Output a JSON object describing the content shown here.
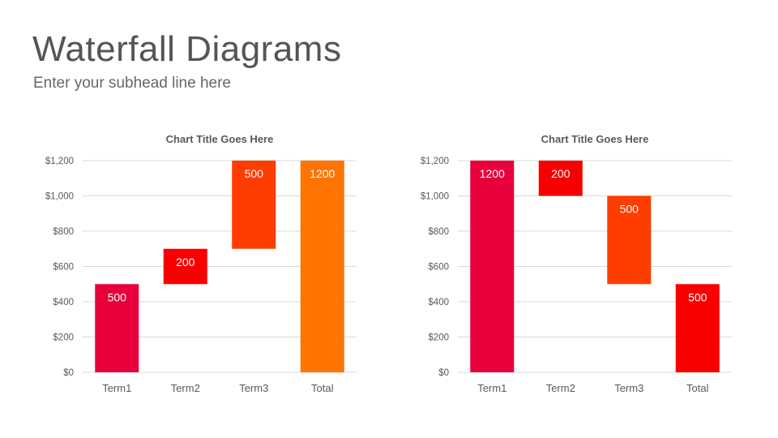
{
  "page": {
    "title": "Waterfall Diagrams",
    "subtitle": "Enter your subhead line here"
  },
  "chart_data": [
    {
      "type": "bar",
      "subtype": "waterfall",
      "title": "Chart Title Goes Here",
      "categories": [
        "Term1",
        "Term2",
        "Term3",
        "Total"
      ],
      "bars": [
        {
          "category": "Term1",
          "start": 0,
          "end": 500,
          "label": "500",
          "color": "#e8003c"
        },
        {
          "category": "Term2",
          "start": 500,
          "end": 700,
          "label": "200",
          "color": "#f80000"
        },
        {
          "category": "Term3",
          "start": 700,
          "end": 1200,
          "label": "500",
          "color": "#ff3d00"
        },
        {
          "category": "Total",
          "start": 0,
          "end": 1200,
          "label": "1200",
          "color": "#ff7300"
        }
      ],
      "ylim": [
        0,
        1200
      ],
      "yticks": [
        "$0",
        "$200",
        "$400",
        "$600",
        "$800",
        "$1,000",
        "$1,200"
      ],
      "grid": true
    },
    {
      "type": "bar",
      "subtype": "waterfall",
      "title": "Chart Title Goes Here",
      "categories": [
        "Term1",
        "Term2",
        "Term3",
        "Total"
      ],
      "bars": [
        {
          "category": "Term1",
          "start": 0,
          "end": 1200,
          "label": "1200",
          "color": "#e8003c"
        },
        {
          "category": "Term2",
          "start": 1000,
          "end": 1200,
          "label": "200",
          "color": "#f80000"
        },
        {
          "category": "Term3",
          "start": 500,
          "end": 1000,
          "label": "500",
          "color": "#ff3d00"
        },
        {
          "category": "Total",
          "start": 0,
          "end": 500,
          "label": "500",
          "color": "#f80000"
        }
      ],
      "ylim": [
        0,
        1200
      ],
      "yticks": [
        "$0",
        "$200",
        "$400",
        "$600",
        "$800",
        "$1,000",
        "$1,200"
      ],
      "grid": true
    }
  ]
}
